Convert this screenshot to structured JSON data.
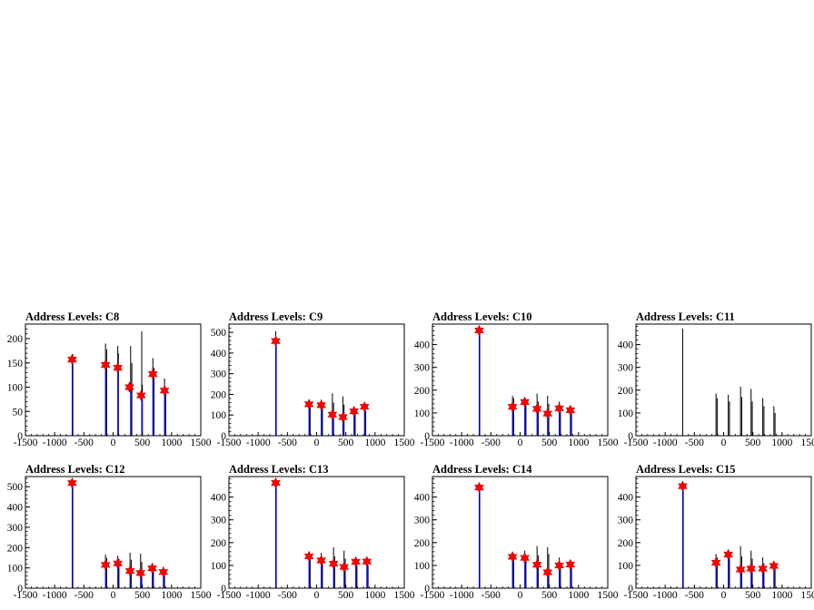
{
  "page": {
    "background": "#ffffff",
    "histogram_color": "#000000",
    "fit_color": "#0000ff",
    "marker_color": "#ff0000",
    "marker_shape": "star"
  },
  "chart_data": [
    {
      "type": "histogram",
      "title": "Address Levels: C8",
      "xlim": [
        -1500,
        1500
      ],
      "ylim": [
        0,
        230
      ],
      "xticks": [
        "-1500",
        "-1000",
        "-500",
        "0",
        "500",
        "1000",
        "1500"
      ],
      "yticks": [
        "0",
        "50",
        "100",
        "150",
        "200"
      ],
      "histogram": [
        {
          "x": -700,
          "y": 150
        },
        {
          "x": -690,
          "y": 168
        },
        {
          "x": -130,
          "y": 190
        },
        {
          "x": -110,
          "y": 178
        },
        {
          "x": 80,
          "y": 185
        },
        {
          "x": 90,
          "y": 170
        },
        {
          "x": 300,
          "y": 185
        },
        {
          "x": 320,
          "y": 150
        },
        {
          "x": 490,
          "y": 215
        },
        {
          "x": 500,
          "y": 105
        },
        {
          "x": 680,
          "y": 160
        },
        {
          "x": 700,
          "y": 140
        },
        {
          "x": 880,
          "y": 118
        },
        {
          "x": 900,
          "y": 100
        }
      ],
      "fits": [
        {
          "x": -700,
          "y": 155
        },
        {
          "x": -130,
          "y": 145
        },
        {
          "x": 80,
          "y": 140
        },
        {
          "x": 300,
          "y": 100
        },
        {
          "x": 490,
          "y": 82
        },
        {
          "x": 680,
          "y": 125
        },
        {
          "x": 880,
          "y": 92
        }
      ],
      "peaks": [
        {
          "x": -700,
          "y": 157
        },
        {
          "x": -130,
          "y": 146
        },
        {
          "x": 80,
          "y": 140
        },
        {
          "x": 280,
          "y": 100
        },
        {
          "x": 480,
          "y": 83
        },
        {
          "x": 680,
          "y": 127
        },
        {
          "x": 880,
          "y": 93
        }
      ]
    },
    {
      "type": "histogram",
      "title": "Address Levels: C9",
      "xlim": [
        -1500,
        1500
      ],
      "ylim": [
        0,
        540
      ],
      "xticks": [
        "-1500",
        "-1000",
        "-500",
        "0",
        "500",
        "1000",
        "1500"
      ],
      "yticks": [
        "0",
        "100",
        "200",
        "300",
        "400",
        "500"
      ],
      "histogram": [
        {
          "x": -700,
          "y": 505
        },
        {
          "x": -130,
          "y": 170
        },
        {
          "x": -110,
          "y": 160
        },
        {
          "x": 80,
          "y": 175
        },
        {
          "x": 100,
          "y": 160
        },
        {
          "x": 270,
          "y": 205
        },
        {
          "x": 290,
          "y": 160
        },
        {
          "x": 450,
          "y": 190
        },
        {
          "x": 470,
          "y": 150
        },
        {
          "x": 640,
          "y": 140
        },
        {
          "x": 660,
          "y": 120
        },
        {
          "x": 820,
          "y": 150
        },
        {
          "x": 840,
          "y": 120
        }
      ],
      "fits": [
        {
          "x": -700,
          "y": 455
        },
        {
          "x": -130,
          "y": 152
        },
        {
          "x": 80,
          "y": 150
        },
        {
          "x": 270,
          "y": 105
        },
        {
          "x": 450,
          "y": 90
        },
        {
          "x": 640,
          "y": 120
        },
        {
          "x": 820,
          "y": 140
        }
      ],
      "peaks": [
        {
          "x": -700,
          "y": 458
        },
        {
          "x": -130,
          "y": 152
        },
        {
          "x": 80,
          "y": 148
        },
        {
          "x": 270,
          "y": 102
        },
        {
          "x": 450,
          "y": 90
        },
        {
          "x": 640,
          "y": 118
        },
        {
          "x": 820,
          "y": 140
        }
      ]
    },
    {
      "type": "histogram",
      "title": "Address Levels: C10",
      "xlim": [
        -1500,
        1500
      ],
      "ylim": [
        0,
        490
      ],
      "xticks": [
        "-1500",
        "-1000",
        "-500",
        "0",
        "500",
        "1000",
        "1500"
      ],
      "yticks": [
        "0",
        "100",
        "200",
        "300",
        "400"
      ],
      "histogram": [
        {
          "x": -700,
          "y": 470
        },
        {
          "x": -130,
          "y": 175
        },
        {
          "x": -110,
          "y": 165
        },
        {
          "x": 80,
          "y": 165
        },
        {
          "x": 100,
          "y": 150
        },
        {
          "x": 290,
          "y": 185
        },
        {
          "x": 310,
          "y": 150
        },
        {
          "x": 470,
          "y": 175
        },
        {
          "x": 490,
          "y": 140
        },
        {
          "x": 670,
          "y": 150
        },
        {
          "x": 690,
          "y": 120
        },
        {
          "x": 860,
          "y": 120
        },
        {
          "x": 880,
          "y": 100
        }
      ],
      "fits": [
        {
          "x": -700,
          "y": 460
        },
        {
          "x": -130,
          "y": 125
        },
        {
          "x": 80,
          "y": 150
        },
        {
          "x": 290,
          "y": 118
        },
        {
          "x": 470,
          "y": 98
        },
        {
          "x": 670,
          "y": 120
        },
        {
          "x": 860,
          "y": 110
        }
      ],
      "peaks": [
        {
          "x": -700,
          "y": 462
        },
        {
          "x": -130,
          "y": 127
        },
        {
          "x": 80,
          "y": 148
        },
        {
          "x": 290,
          "y": 118
        },
        {
          "x": 470,
          "y": 97
        },
        {
          "x": 670,
          "y": 120
        },
        {
          "x": 860,
          "y": 112
        }
      ]
    },
    {
      "type": "histogram",
      "title": "Address Levels: C11",
      "xlim": [
        -1500,
        1500
      ],
      "ylim": [
        0,
        490
      ],
      "xticks": [
        "-1500",
        "-1000",
        "-500",
        "0",
        "500",
        "1000",
        "1500"
      ],
      "yticks": [
        "0",
        "100",
        "200",
        "300",
        "400"
      ],
      "histogram": [
        {
          "x": -700,
          "y": 470
        },
        {
          "x": -130,
          "y": 185
        },
        {
          "x": -110,
          "y": 165
        },
        {
          "x": 80,
          "y": 180
        },
        {
          "x": 100,
          "y": 150
        },
        {
          "x": 290,
          "y": 215
        },
        {
          "x": 310,
          "y": 170
        },
        {
          "x": 470,
          "y": 205
        },
        {
          "x": 490,
          "y": 150
        },
        {
          "x": 670,
          "y": 165
        },
        {
          "x": 690,
          "y": 130
        },
        {
          "x": 860,
          "y": 130
        },
        {
          "x": 880,
          "y": 100
        }
      ],
      "fits": [],
      "peaks": []
    },
    {
      "type": "histogram",
      "title": "Address Levels: C12",
      "xlim": [
        -1500,
        1500
      ],
      "ylim": [
        0,
        550
      ],
      "xticks": [
        "-1500",
        "-1000",
        "-500",
        "0",
        "500",
        "1000",
        "1500"
      ],
      "yticks": [
        "0",
        "100",
        "200",
        "300",
        "400",
        "500"
      ],
      "histogram": [
        {
          "x": -700,
          "y": 525
        },
        {
          "x": -130,
          "y": 165
        },
        {
          "x": -110,
          "y": 150
        },
        {
          "x": 80,
          "y": 160
        },
        {
          "x": 100,
          "y": 145
        },
        {
          "x": 290,
          "y": 175
        },
        {
          "x": 310,
          "y": 140
        },
        {
          "x": 470,
          "y": 170
        },
        {
          "x": 490,
          "y": 130
        },
        {
          "x": 670,
          "y": 125
        },
        {
          "x": 690,
          "y": 100
        },
        {
          "x": 860,
          "y": 105
        },
        {
          "x": 880,
          "y": 90
        }
      ],
      "fits": [
        {
          "x": -700,
          "y": 515
        },
        {
          "x": -130,
          "y": 115
        },
        {
          "x": 80,
          "y": 120
        },
        {
          "x": 290,
          "y": 85
        },
        {
          "x": 470,
          "y": 75
        },
        {
          "x": 670,
          "y": 100
        },
        {
          "x": 860,
          "y": 80
        }
      ],
      "peaks": [
        {
          "x": -700,
          "y": 518
        },
        {
          "x": -130,
          "y": 115
        },
        {
          "x": 80,
          "y": 122
        },
        {
          "x": 290,
          "y": 85
        },
        {
          "x": 470,
          "y": 75
        },
        {
          "x": 670,
          "y": 98
        },
        {
          "x": 860,
          "y": 80
        }
      ]
    },
    {
      "type": "histogram",
      "title": "Address Levels: C13",
      "xlim": [
        -1500,
        1500
      ],
      "ylim": [
        0,
        490
      ],
      "xticks": [
        "-1500",
        "-1000",
        "-500",
        "0",
        "500",
        "1000",
        "1500"
      ],
      "yticks": [
        "0",
        "100",
        "200",
        "300",
        "400"
      ],
      "histogram": [
        {
          "x": -700,
          "y": 470
        },
        {
          "x": -130,
          "y": 150
        },
        {
          "x": -110,
          "y": 140
        },
        {
          "x": 80,
          "y": 155
        },
        {
          "x": 100,
          "y": 130
        },
        {
          "x": 290,
          "y": 180
        },
        {
          "x": 310,
          "y": 140
        },
        {
          "x": 470,
          "y": 165
        },
        {
          "x": 490,
          "y": 130
        },
        {
          "x": 670,
          "y": 125
        },
        {
          "x": 690,
          "y": 100
        },
        {
          "x": 860,
          "y": 120
        },
        {
          "x": 880,
          "y": 100
        }
      ],
      "fits": [
        {
          "x": -700,
          "y": 460
        },
        {
          "x": -130,
          "y": 140
        },
        {
          "x": 80,
          "y": 122
        },
        {
          "x": 290,
          "y": 108
        },
        {
          "x": 470,
          "y": 95
        },
        {
          "x": 670,
          "y": 115
        },
        {
          "x": 860,
          "y": 115
        }
      ],
      "peaks": [
        {
          "x": -700,
          "y": 462
        },
        {
          "x": -130,
          "y": 140
        },
        {
          "x": 80,
          "y": 122
        },
        {
          "x": 290,
          "y": 108
        },
        {
          "x": 470,
          "y": 93
        },
        {
          "x": 670,
          "y": 116
        },
        {
          "x": 860,
          "y": 117
        }
      ]
    },
    {
      "type": "histogram",
      "title": "Address Levels: C14",
      "xlim": [
        -1500,
        1500
      ],
      "ylim": [
        0,
        490
      ],
      "xticks": [
        "-1500",
        "-1000",
        "-500",
        "0",
        "500",
        "1000",
        "1500"
      ],
      "yticks": [
        "0",
        "100",
        "200",
        "300",
        "400"
      ],
      "histogram": [
        {
          "x": -700,
          "y": 450
        },
        {
          "x": -130,
          "y": 160
        },
        {
          "x": -110,
          "y": 145
        },
        {
          "x": 80,
          "y": 165
        },
        {
          "x": 100,
          "y": 140
        },
        {
          "x": 290,
          "y": 185
        },
        {
          "x": 310,
          "y": 145
        },
        {
          "x": 470,
          "y": 180
        },
        {
          "x": 490,
          "y": 150
        },
        {
          "x": 670,
          "y": 135
        },
        {
          "x": 690,
          "y": 110
        },
        {
          "x": 860,
          "y": 110
        },
        {
          "x": 880,
          "y": 95
        }
      ],
      "fits": [
        {
          "x": -700,
          "y": 440
        },
        {
          "x": -130,
          "y": 138
        },
        {
          "x": 80,
          "y": 132
        },
        {
          "x": 290,
          "y": 102
        },
        {
          "x": 470,
          "y": 70
        },
        {
          "x": 670,
          "y": 100
        },
        {
          "x": 860,
          "y": 103
        }
      ],
      "peaks": [
        {
          "x": -700,
          "y": 442
        },
        {
          "x": -130,
          "y": 138
        },
        {
          "x": 80,
          "y": 133
        },
        {
          "x": 290,
          "y": 103
        },
        {
          "x": 470,
          "y": 70
        },
        {
          "x": 670,
          "y": 100
        },
        {
          "x": 860,
          "y": 104
        }
      ]
    },
    {
      "type": "histogram",
      "title": "Address Levels: C15",
      "xlim": [
        -1500,
        1500
      ],
      "ylim": [
        0,
        490
      ],
      "xticks": [
        "-1500",
        "-1000",
        "-500",
        "0",
        "500",
        "1000",
        "1500"
      ],
      "yticks": [
        "0",
        "100",
        "200",
        "300",
        "400"
      ],
      "histogram": [
        {
          "x": -700,
          "y": 450
        },
        {
          "x": -130,
          "y": 150
        },
        {
          "x": -110,
          "y": 135
        },
        {
          "x": 80,
          "y": 170
        },
        {
          "x": 100,
          "y": 150
        },
        {
          "x": 290,
          "y": 185
        },
        {
          "x": 310,
          "y": 140
        },
        {
          "x": 470,
          "y": 165
        },
        {
          "x": 490,
          "y": 130
        },
        {
          "x": 670,
          "y": 135
        },
        {
          "x": 690,
          "y": 110
        },
        {
          "x": 860,
          "y": 110
        },
        {
          "x": 880,
          "y": 95
        }
      ],
      "fits": [
        {
          "x": -700,
          "y": 448
        },
        {
          "x": -130,
          "y": 110
        },
        {
          "x": 80,
          "y": 148
        },
        {
          "x": 290,
          "y": 82
        },
        {
          "x": 470,
          "y": 85
        },
        {
          "x": 670,
          "y": 85
        },
        {
          "x": 860,
          "y": 98
        }
      ],
      "peaks": [
        {
          "x": -700,
          "y": 448
        },
        {
          "x": -130,
          "y": 112
        },
        {
          "x": 80,
          "y": 148
        },
        {
          "x": 290,
          "y": 82
        },
        {
          "x": 470,
          "y": 86
        },
        {
          "x": 670,
          "y": 86
        },
        {
          "x": 860,
          "y": 98
        }
      ]
    }
  ]
}
